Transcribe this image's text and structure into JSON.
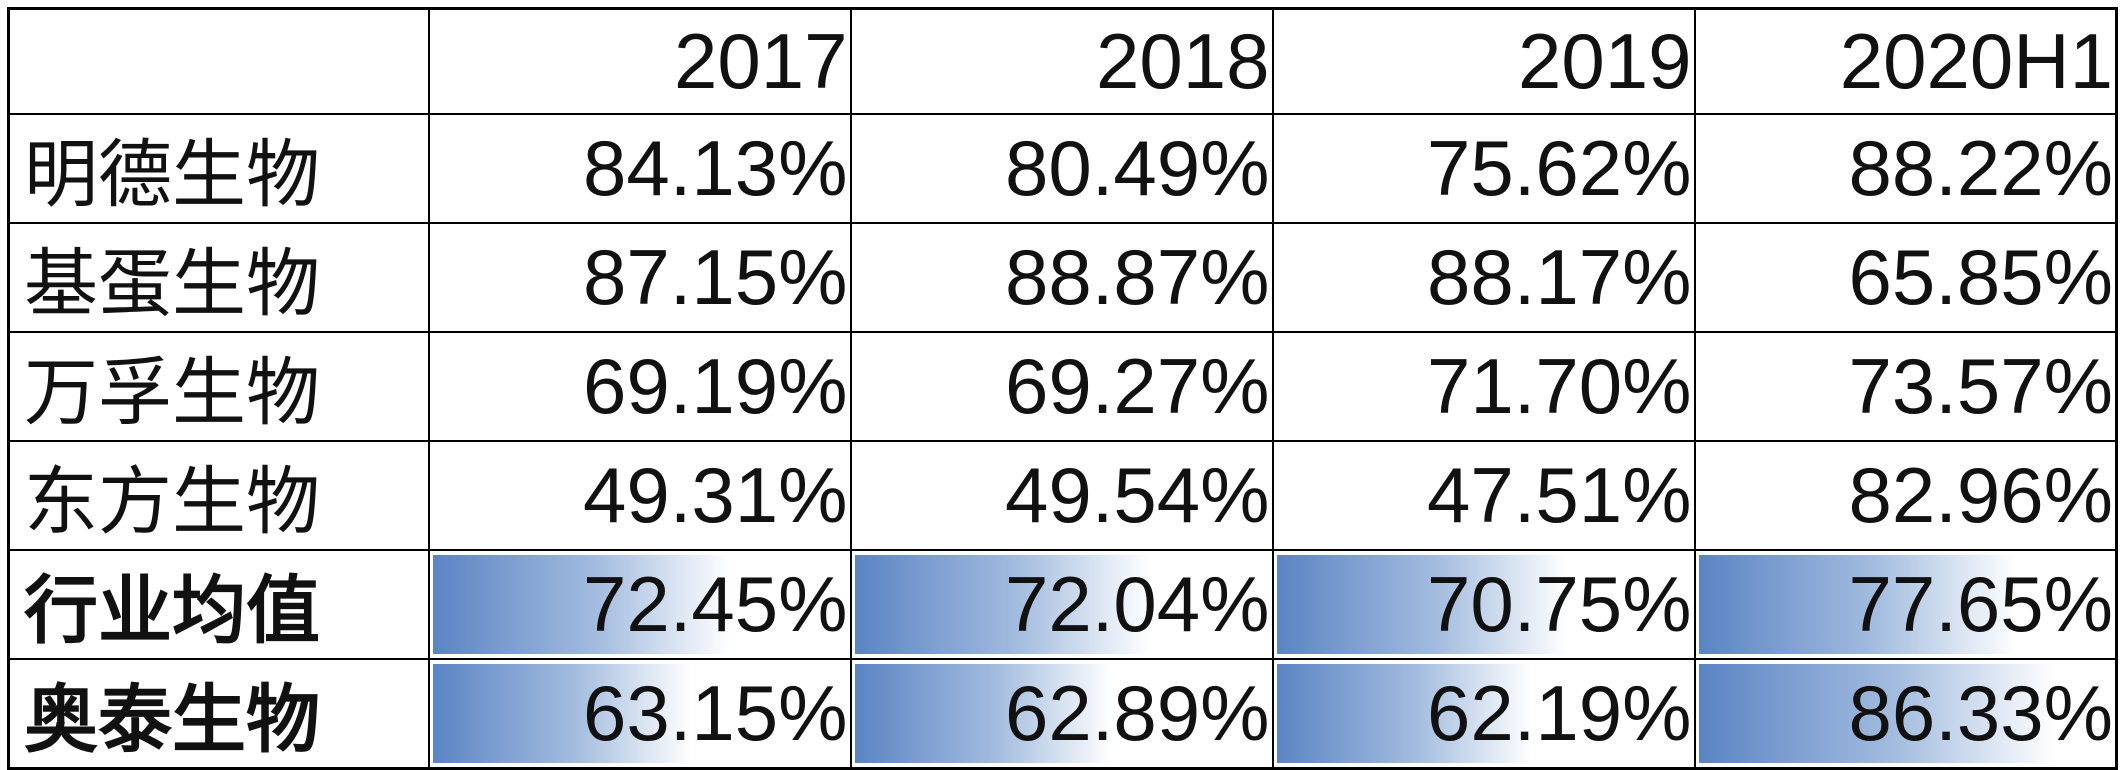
{
  "header": [
    "",
    "2017",
    "2018",
    "2019",
    "2020H1"
  ],
  "rows": [
    {
      "label": "明德生物",
      "values": [
        "84.13%",
        "80.49%",
        "75.62%",
        "88.22%"
      ],
      "bold": false,
      "bars": false
    },
    {
      "label": "基蛋生物",
      "values": [
        "87.15%",
        "88.87%",
        "88.17%",
        "65.85%"
      ],
      "bold": false,
      "bars": false
    },
    {
      "label": "万孚生物",
      "values": [
        "69.19%",
        "69.27%",
        "71.70%",
        "73.57%"
      ],
      "bold": false,
      "bars": false
    },
    {
      "label": "东方生物",
      "values": [
        "49.31%",
        "49.54%",
        "47.51%",
        "82.96%"
      ],
      "bold": false,
      "bars": false
    },
    {
      "label": "行业均值",
      "values": [
        "72.45%",
        "72.04%",
        "70.75%",
        "77.65%"
      ],
      "bold": true,
      "bars": true
    },
    {
      "label": "奥泰生物",
      "values": [
        "63.15%",
        "62.89%",
        "62.19%",
        "86.33%"
      ],
      "bold": true,
      "bars": true
    }
  ],
  "data_bar": {
    "color_start": "#5b84c4",
    "color_end": "#ffffff",
    "scale_max": 100
  }
}
